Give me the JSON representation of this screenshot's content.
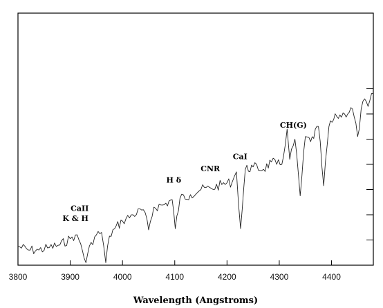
{
  "chart_data": {
    "type": "line",
    "title": "",
    "xlabel": "Wavelength (Angstroms)",
    "ylabel": "",
    "xlim": [
      3800,
      4480
    ],
    "ylim": [
      0,
      10
    ],
    "x_ticks": [
      3800,
      3900,
      4000,
      4100,
      4200,
      4300,
      4400
    ],
    "x_tick_labels": [
      "3800",
      "3900",
      "4000",
      "4100",
      "4200",
      "4300",
      "4400"
    ],
    "y_ticks": [
      1,
      2,
      3,
      4,
      5,
      6,
      7
    ],
    "y_tick_labels": [],
    "grid": false,
    "legend": "none",
    "line_color": "#222222",
    "series": [
      {
        "x": [
          3800,
          3820,
          3840,
          3860,
          3880,
          3900,
          3910,
          3920,
          3930,
          3940,
          3950,
          3960,
          3968,
          3975,
          3985,
          4000,
          4020,
          4040,
          4050,
          4060,
          4080,
          4095,
          4101,
          4110,
          4130,
          4150,
          4170,
          4190,
          4210,
          4218,
          4226,
          4235,
          4250,
          4270,
          4285,
          4295,
          4305,
          4315,
          4320,
          4330,
          4340,
          4350,
          4360,
          4375,
          4385,
          4395,
          4410,
          4425,
          4440,
          4450,
          4460,
          4470,
          4480
        ],
        "y": [
          0.75,
          0.6,
          0.6,
          0.7,
          0.8,
          1.05,
          1.2,
          0.85,
          0.1,
          0.9,
          1.2,
          1.3,
          0.1,
          1.15,
          1.45,
          1.75,
          2.0,
          2.2,
          1.4,
          2.3,
          2.4,
          2.6,
          1.45,
          2.65,
          2.8,
          3.0,
          3.05,
          3.2,
          3.3,
          3.7,
          1.45,
          3.8,
          3.9,
          3.8,
          4.1,
          4.0,
          4.0,
          5.4,
          4.2,
          5.0,
          2.75,
          5.1,
          4.9,
          5.5,
          3.15,
          5.5,
          5.9,
          6.0,
          6.2,
          5.1,
          6.5,
          6.3,
          6.8
        ]
      }
    ],
    "annotations": [
      {
        "text": "CaII",
        "x": 3918,
        "y": 2.15
      },
      {
        "text": "K & H",
        "x": 3910,
        "y": 1.75
      },
      {
        "text": "H δ",
        "x": 4098,
        "y": 3.27
      },
      {
        "text": "CNR",
        "x": 4168,
        "y": 3.72
      },
      {
        "text": "CaI",
        "x": 4225,
        "y": 4.2
      },
      {
        "text": "CH(G)",
        "x": 4327,
        "y": 5.45
      }
    ]
  }
}
